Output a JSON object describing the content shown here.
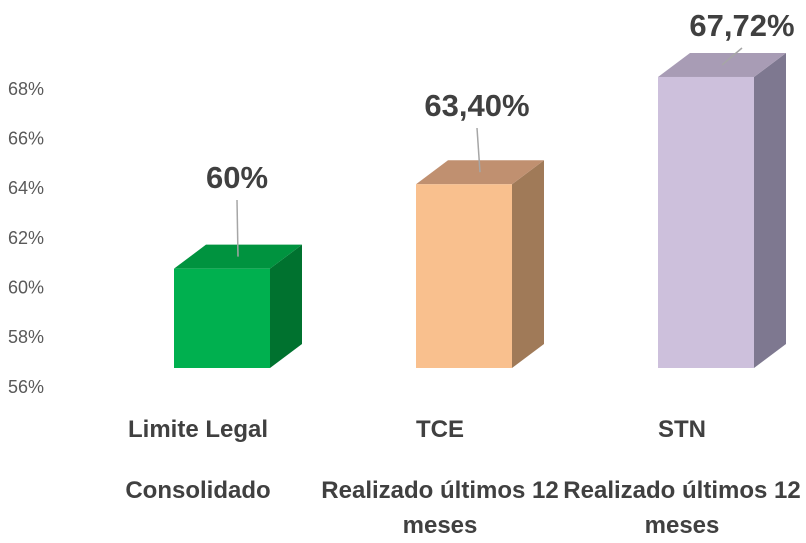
{
  "chart_data": {
    "type": "bar3d",
    "categories": [
      "Limite Legal",
      "TCE",
      "STN"
    ],
    "subcategories": [
      "Consolidado",
      "Realizado últimos 12 meses",
      "Realizado últimos 12 meses"
    ],
    "values": [
      60,
      63.4,
      67.72
    ],
    "value_labels": [
      "60%",
      "63,40%",
      "67,72%"
    ],
    "colors": [
      "#00b04f",
      "#f9c08e",
      "#cdc0dc"
    ],
    "top_colors": [
      "#00933f",
      "#c09070",
      "#a89cb5"
    ],
    "side_colors": [
      "#00722f",
      "#a07a58",
      "#7e7890"
    ],
    "ylim": [
      56,
      68
    ],
    "yticks": [
      {
        "value": 56,
        "label": "56%"
      },
      {
        "value": 58,
        "label": "58%"
      },
      {
        "value": 60,
        "label": "60%"
      },
      {
        "value": 62,
        "label": "62%"
      },
      {
        "value": 64,
        "label": "64%"
      },
      {
        "value": 66,
        "label": "66%"
      },
      {
        "value": 68,
        "label": "68%"
      }
    ]
  }
}
